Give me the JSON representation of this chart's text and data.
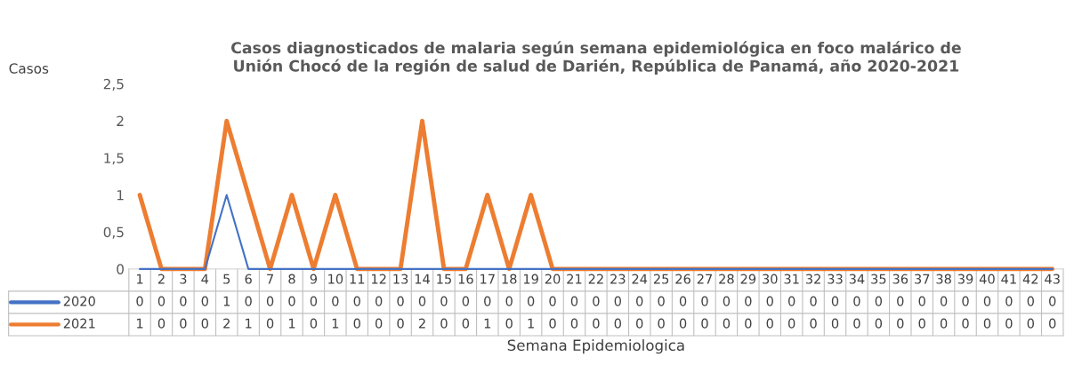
{
  "chart_data": {
    "type": "line",
    "title": "Casos diagnosticados de malaria según semana epidemiológica en foco malárico de\nUnión Chocó de la región de salud de Darién, República de Panamá, año 2020-2021",
    "xlabel": "Semana Epidemiologica",
    "ylabel": "Casos",
    "categories": [
      "1",
      "2",
      "3",
      "4",
      "5",
      "6",
      "7",
      "8",
      "9",
      "10",
      "11",
      "12",
      "13",
      "14",
      "15",
      "16",
      "17",
      "18",
      "19",
      "20",
      "21",
      "22",
      "23",
      "24",
      "25",
      "26",
      "27",
      "28",
      "29",
      "30",
      "31",
      "32",
      "33",
      "34",
      "35",
      "36",
      "37",
      "38",
      "39",
      "40",
      "41",
      "42",
      "43"
    ],
    "series": [
      {
        "name": "2020",
        "color": "#4472c4",
        "values": [
          0,
          0,
          0,
          0,
          1,
          0,
          0,
          0,
          0,
          0,
          0,
          0,
          0,
          0,
          0,
          0,
          0,
          0,
          0,
          0,
          0,
          0,
          0,
          0,
          0,
          0,
          0,
          0,
          0,
          0,
          0,
          0,
          0,
          0,
          0,
          0,
          0,
          0,
          0,
          0,
          0,
          0,
          0
        ]
      },
      {
        "name": "2021",
        "color": "#ed7d31",
        "values": [
          1,
          0,
          0,
          0,
          2,
          1,
          0,
          1,
          0,
          1,
          0,
          0,
          0,
          2,
          0,
          0,
          1,
          0,
          1,
          0,
          0,
          0,
          0,
          0,
          0,
          0,
          0,
          0,
          0,
          0,
          0,
          0,
          0,
          0,
          0,
          0,
          0,
          0,
          0,
          0,
          0,
          0,
          0
        ]
      }
    ],
    "ylim": [
      0,
      2.5
    ],
    "yticks": [
      0,
      {
        "value": 0.5,
        "label": "0,5"
      },
      1,
      {
        "value": 1.5,
        "label": "1,5"
      },
      2,
      {
        "value": 2.5,
        "label": "2,5"
      }
    ],
    "grid": false,
    "legend": "bottom",
    "data_labels": true,
    "marker": "none",
    "line_style": "solid"
  }
}
